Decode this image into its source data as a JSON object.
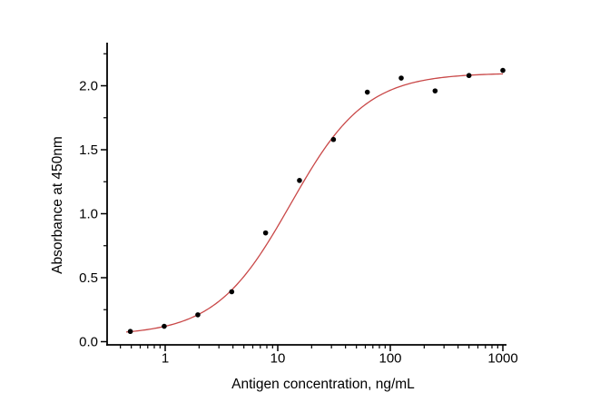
{
  "chart_data": {
    "type": "scatter",
    "title": "",
    "xlabel": "Antigen concentration, ng/mL",
    "ylabel": "Absorbance at 450nm",
    "x_scale": "log",
    "xlim": [
      0.3,
      1075
    ],
    "ylim": [
      -0.025,
      2.34
    ],
    "grid": false,
    "legend": "none",
    "x_major_ticks": {
      "values": [
        1,
        10,
        100,
        1000
      ],
      "labels": [
        "1",
        "10",
        "100",
        "1000"
      ]
    },
    "y_major_ticks": {
      "values": [
        0,
        0.5,
        1,
        1.5,
        2
      ],
      "labels": [
        "0.0",
        "0.5",
        "1.0",
        "1.5",
        "2.0"
      ]
    },
    "y_minor_step": 0.25,
    "series": [
      {
        "name": "measured-absorbance-points",
        "type": "scatter",
        "x": [
          0.49,
          0.98,
          1.95,
          3.9,
          7.8,
          15.6,
          31.25,
          62.5,
          125,
          250,
          500,
          1000
        ],
        "y": [
          0.08,
          0.12,
          0.21,
          0.39,
          0.85,
          1.26,
          1.58,
          1.95,
          2.06,
          1.96,
          2.08,
          2.12
        ],
        "color": "#000000"
      },
      {
        "name": "4PL-fit-curve",
        "type": "line",
        "model": "4PL",
        "params": {
          "bottom": 0.05,
          "top": 2.1,
          "ec50": 13,
          "hill": 1.3
        },
        "x_range": [
          0.45,
          1000
        ],
        "color": "#c94848"
      }
    ],
    "colors": {
      "axis": "#000000",
      "text": "#000000",
      "points": "#000000",
      "fit_line": "#c94848",
      "background": "#ffffff"
    }
  }
}
